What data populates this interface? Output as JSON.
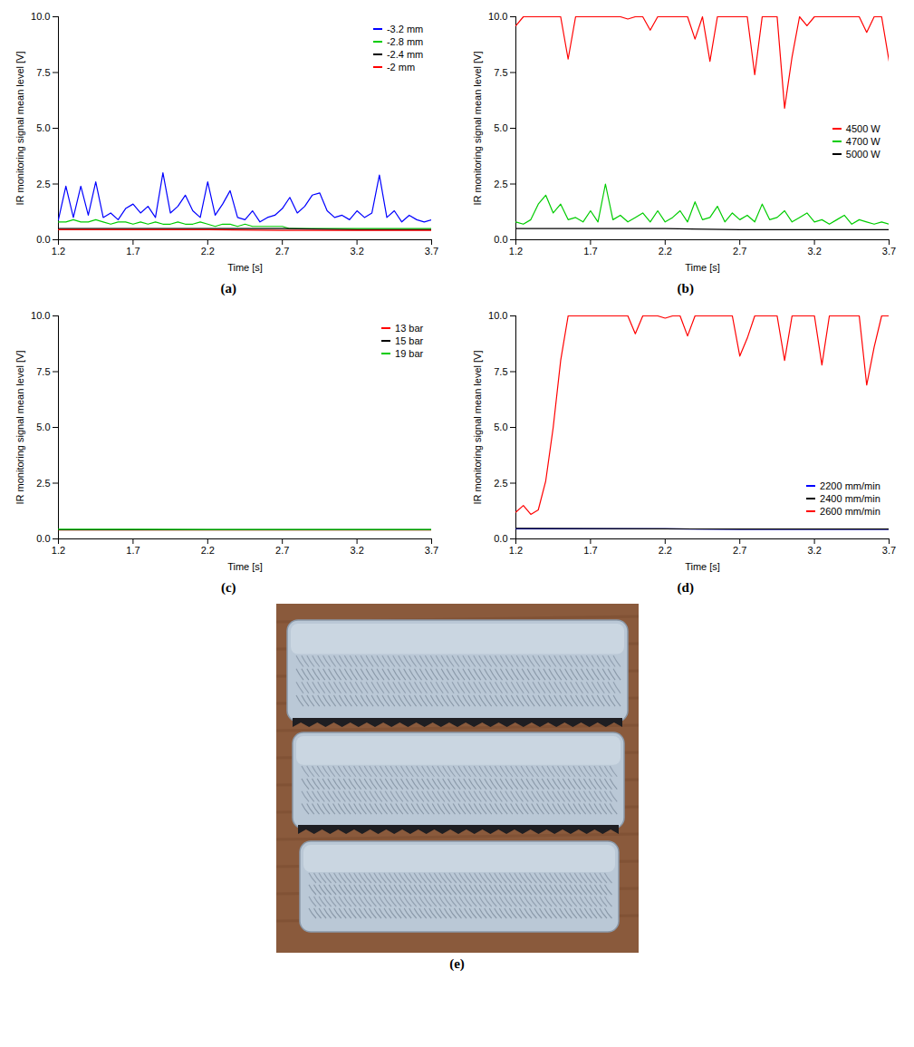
{
  "chart_data": [
    {
      "type": "line",
      "label": "(a)",
      "xlabel": "Time [s]",
      "ylabel": "IR monitoring signal mean level [V]",
      "xlim": [
        1.2,
        3.7
      ],
      "xticks": [
        1.2,
        1.7,
        2.2,
        2.7,
        3.2,
        3.7
      ],
      "ylim": [
        0,
        10
      ],
      "yticks": [
        {
          "value": 0,
          "label": "0.0"
        },
        {
          "value": 2.5,
          "label": "2.5"
        },
        {
          "value": 5,
          "label": "5.0"
        },
        {
          "value": 7.5,
          "label": "7.5"
        },
        {
          "value": 10,
          "label": "10.0"
        }
      ],
      "grid": false,
      "legend": "top-right",
      "x": [
        1.2,
        1.25,
        1.3,
        1.35,
        1.4,
        1.45,
        1.5,
        1.55,
        1.6,
        1.65,
        1.7,
        1.75,
        1.8,
        1.85,
        1.9,
        1.95,
        2.0,
        2.05,
        2.1,
        2.15,
        2.2,
        2.25,
        2.3,
        2.35,
        2.4,
        2.45,
        2.5,
        2.55,
        2.6,
        2.65,
        2.7,
        2.75,
        2.8,
        2.85,
        2.9,
        2.95,
        3.0,
        3.05,
        3.1,
        3.15,
        3.2,
        3.25,
        3.3,
        3.35,
        3.4,
        3.45,
        3.5,
        3.55,
        3.6,
        3.65,
        3.7
      ],
      "series": [
        {
          "name": "-3.2 mm",
          "color": "#0000ff",
          "values": [
            0.9,
            2.4,
            1.0,
            2.4,
            1.1,
            2.6,
            1.0,
            1.2,
            0.9,
            1.4,
            1.6,
            1.2,
            1.5,
            1.0,
            3.0,
            1.2,
            1.5,
            2.0,
            1.3,
            1.0,
            2.6,
            1.1,
            1.6,
            2.2,
            1.0,
            0.9,
            1.3,
            0.8,
            1.0,
            1.1,
            1.4,
            1.9,
            1.2,
            1.5,
            2.0,
            2.1,
            1.3,
            1.0,
            1.1,
            0.9,
            1.3,
            1.0,
            1.2,
            2.9,
            1.0,
            1.3,
            0.8,
            1.1,
            0.9,
            0.8,
            0.9
          ]
        },
        {
          "name": "-2.8 mm",
          "color": "#00cc00",
          "values": [
            0.8,
            0.8,
            0.9,
            0.8,
            0.8,
            0.9,
            0.8,
            0.7,
            0.8,
            0.8,
            0.7,
            0.8,
            0.7,
            0.8,
            0.7,
            0.7,
            0.8,
            0.7,
            0.7,
            0.8,
            0.7,
            0.6,
            0.7,
            0.7,
            0.6,
            0.7,
            0.6,
            0.6,
            0.6,
            0.6,
            0.6,
            0.5,
            0.5,
            0.5,
            0.5,
            0.5,
            0.5,
            0.5,
            0.5,
            0.5,
            0.5,
            0.5,
            0.5,
            0.5,
            0.5,
            0.5,
            0.5,
            0.5,
            0.5,
            0.5,
            0.5
          ]
        },
        {
          "name": "-2.4 mm",
          "color": "#000000",
          "x": [
            1.2,
            1.7,
            2.2,
            2.7,
            3.2,
            3.7
          ],
          "values": [
            0.5,
            0.5,
            0.5,
            0.5,
            0.45,
            0.45
          ]
        },
        {
          "name": "-2 mm",
          "color": "#ff0000",
          "x": [
            1.2,
            1.7,
            2.2,
            2.7,
            3.2,
            3.7
          ],
          "values": [
            0.45,
            0.45,
            0.45,
            0.42,
            0.42,
            0.42
          ]
        }
      ]
    },
    {
      "type": "line",
      "label": "(b)",
      "xlabel": "Time [s]",
      "ylabel": "IR monitoring signal mean level [V]",
      "xlim": [
        1.2,
        3.7
      ],
      "xticks": [
        1.2,
        1.7,
        2.2,
        2.7,
        3.2,
        3.7
      ],
      "ylim": [
        0,
        10
      ],
      "yticks": [
        {
          "value": 0,
          "label": "0.0"
        },
        {
          "value": 2.5,
          "label": "2.5"
        },
        {
          "value": 5,
          "label": "5.0"
        },
        {
          "value": 7.5,
          "label": "7.5"
        },
        {
          "value": 10,
          "label": "10.0"
        }
      ],
      "grid": false,
      "legend": "right",
      "x": [
        1.2,
        1.25,
        1.3,
        1.35,
        1.4,
        1.45,
        1.5,
        1.55,
        1.6,
        1.65,
        1.7,
        1.75,
        1.8,
        1.85,
        1.9,
        1.95,
        2.0,
        2.05,
        2.1,
        2.15,
        2.2,
        2.25,
        2.3,
        2.35,
        2.4,
        2.45,
        2.5,
        2.55,
        2.6,
        2.65,
        2.7,
        2.75,
        2.8,
        2.85,
        2.9,
        2.95,
        3.0,
        3.05,
        3.1,
        3.15,
        3.2,
        3.25,
        3.3,
        3.35,
        3.4,
        3.45,
        3.5,
        3.55,
        3.6,
        3.65,
        3.7
      ],
      "series": [
        {
          "name": "4500 W",
          "color": "#ff0000",
          "values": [
            9.6,
            10,
            10,
            10,
            10,
            10,
            10,
            8.1,
            10,
            10,
            10,
            10,
            10,
            10,
            10,
            9.9,
            10,
            10,
            9.4,
            10,
            10,
            10,
            10,
            10,
            9.0,
            10,
            8.0,
            10,
            10,
            10,
            10,
            10,
            7.4,
            10,
            10,
            10,
            5.9,
            8.2,
            10,
            9.6,
            10,
            10,
            10,
            10,
            10,
            10,
            10,
            9.3,
            10,
            10,
            8.0
          ]
        },
        {
          "name": "4700 W",
          "color": "#00cc00",
          "values": [
            0.8,
            0.7,
            0.9,
            1.6,
            2.0,
            1.2,
            1.6,
            0.9,
            1.0,
            0.8,
            1.3,
            0.8,
            2.5,
            0.9,
            1.1,
            0.8,
            1.0,
            1.2,
            0.8,
            1.3,
            0.8,
            1.0,
            1.3,
            0.8,
            1.7,
            0.9,
            1.0,
            1.5,
            0.8,
            1.2,
            0.9,
            1.1,
            0.8,
            1.6,
            0.9,
            1.0,
            1.3,
            0.8,
            1.0,
            1.2,
            0.8,
            0.9,
            0.7,
            0.9,
            1.1,
            0.7,
            0.9,
            0.8,
            0.7,
            0.8,
            0.7
          ]
        },
        {
          "name": "5000 W",
          "color": "#000000",
          "x": [
            1.2,
            1.7,
            2.2,
            2.7,
            3.2,
            3.7
          ],
          "values": [
            0.5,
            0.5,
            0.5,
            0.45,
            0.45,
            0.45
          ]
        }
      ]
    },
    {
      "type": "line",
      "label": "(c)",
      "xlabel": "Time [s]",
      "ylabel": "IR monitoring signal mean level [V]",
      "xlim": [
        1.2,
        3.7
      ],
      "xticks": [
        1.2,
        1.7,
        2.2,
        2.7,
        3.2,
        3.7
      ],
      "ylim": [
        0,
        10
      ],
      "yticks": [
        {
          "value": 0,
          "label": "0.0"
        },
        {
          "value": 2.5,
          "label": "2.5"
        },
        {
          "value": 5,
          "label": "5.0"
        },
        {
          "value": 7.5,
          "label": "7.5"
        },
        {
          "value": 10,
          "label": "10.0"
        }
      ],
      "grid": false,
      "legend": "top-right",
      "x": [
        1.2,
        1.7,
        2.2,
        2.7,
        3.2,
        3.7
      ],
      "series": [
        {
          "name": "13 bar",
          "color": "#ff0000",
          "values": [
            0.4,
            0.4,
            0.4,
            0.4,
            0.4,
            0.4
          ]
        },
        {
          "name": "15 bar",
          "color": "#000000",
          "values": [
            0.41,
            0.41,
            0.41,
            0.41,
            0.41,
            0.41
          ]
        },
        {
          "name": "19 bar",
          "color": "#00cc00",
          "values": [
            0.43,
            0.43,
            0.42,
            0.42,
            0.42,
            0.42
          ]
        }
      ]
    },
    {
      "type": "line",
      "label": "(d)",
      "xlabel": "Time [s]",
      "ylabel": "IR monitoring signal mean level [V]",
      "xlim": [
        1.2,
        3.7
      ],
      "xticks": [
        1.2,
        1.7,
        2.2,
        2.7,
        3.2,
        3.7
      ],
      "ylim": [
        0,
        10
      ],
      "yticks": [
        {
          "value": 0,
          "label": "0.0"
        },
        {
          "value": 2.5,
          "label": "2.5"
        },
        {
          "value": 5,
          "label": "5.0"
        },
        {
          "value": 7.5,
          "label": "7.5"
        },
        {
          "value": 10,
          "label": "10.0"
        }
      ],
      "grid": false,
      "legend": "bottom-right",
      "x": [
        1.2,
        1.25,
        1.3,
        1.35,
        1.4,
        1.45,
        1.5,
        1.55,
        1.6,
        1.65,
        1.7,
        1.75,
        1.8,
        1.85,
        1.9,
        1.95,
        2.0,
        2.05,
        2.1,
        2.15,
        2.2,
        2.25,
        2.3,
        2.35,
        2.4,
        2.45,
        2.5,
        2.55,
        2.6,
        2.65,
        2.7,
        2.75,
        2.8,
        2.85,
        2.9,
        2.95,
        3.0,
        3.05,
        3.1,
        3.15,
        3.2,
        3.25,
        3.3,
        3.35,
        3.4,
        3.45,
        3.5,
        3.55,
        3.6,
        3.65,
        3.7
      ],
      "series": [
        {
          "name": "2200 mm/min",
          "color": "#0000ff",
          "x": [
            1.2,
            1.7,
            2.2,
            2.7,
            3.2,
            3.7
          ],
          "values": [
            0.45,
            0.45,
            0.45,
            0.43,
            0.43,
            0.43
          ]
        },
        {
          "name": "2400 mm/min",
          "color": "#000000",
          "x": [
            1.2,
            1.7,
            2.2,
            2.7,
            3.2,
            3.7
          ],
          "values": [
            0.47,
            0.46,
            0.45,
            0.44,
            0.44,
            0.44
          ]
        },
        {
          "name": "2600 mm/min",
          "color": "#ff0000",
          "values": [
            1.2,
            1.5,
            1.1,
            1.3,
            2.6,
            5.0,
            8.0,
            10,
            10,
            10,
            10,
            10,
            10,
            10,
            10,
            10,
            9.2,
            10,
            10,
            10,
            9.9,
            10,
            10,
            9.1,
            10,
            10,
            10,
            10,
            10,
            10,
            8.2,
            9.0,
            10,
            10,
            10,
            10,
            8.0,
            10,
            10,
            10,
            10,
            7.8,
            10,
            10,
            10,
            10,
            10,
            6.9,
            8.6,
            10,
            10
          ]
        }
      ]
    }
  ],
  "image": {
    "label": "(e)"
  }
}
